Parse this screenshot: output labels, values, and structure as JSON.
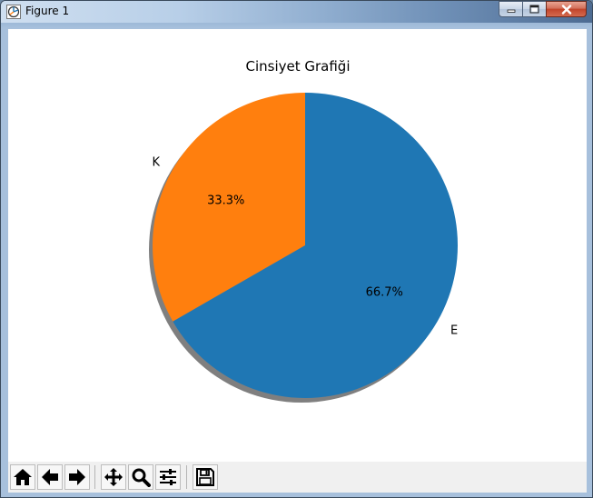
{
  "window": {
    "title": "Figure 1"
  },
  "chart_data": {
    "type": "pie",
    "title": "Cinsiyet Grafiği",
    "labels": [
      "K",
      "E"
    ],
    "values": [
      33.3,
      66.7
    ],
    "value_labels": [
      "33.3%",
      "66.7%"
    ],
    "colors": [
      "#ff7f0e",
      "#1f77b4"
    ],
    "start_angle_deg": 90,
    "direction": "counterclockwise",
    "shadow": true
  },
  "toolbar": {
    "tools": [
      {
        "name": "home",
        "icon": "home-icon"
      },
      {
        "name": "back",
        "icon": "arrow-left-icon"
      },
      {
        "name": "forward",
        "icon": "arrow-right-icon"
      },
      {
        "name": "pan",
        "icon": "move-icon"
      },
      {
        "name": "zoom",
        "icon": "magnifier-icon"
      },
      {
        "name": "configure-subplots",
        "icon": "sliders-icon"
      },
      {
        "name": "save",
        "icon": "floppy-icon"
      }
    ]
  }
}
